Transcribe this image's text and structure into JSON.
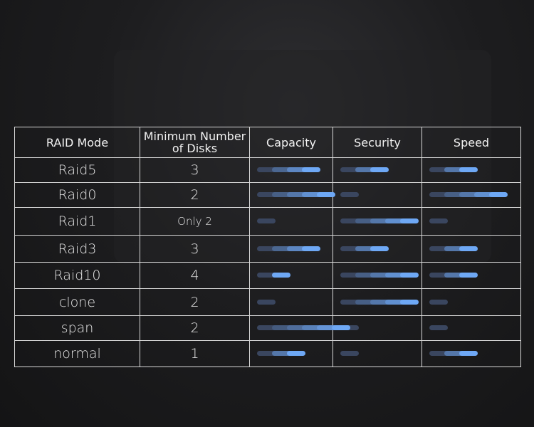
{
  "table": {
    "header": [
      "RAID Mode",
      "Minimum Number of Disks",
      "Capacity",
      "Security",
      "Speed"
    ],
    "rows": [
      {
        "mode": "Raid5",
        "disks": 3,
        "capacity": 4,
        "security": 3,
        "speed": 3
      },
      {
        "mode": "Raid0",
        "disks": 2,
        "capacity": 5,
        "security": 1,
        "speed": 5
      },
      {
        "mode": "Raid1",
        "disks": "Only 2",
        "capacity": 1,
        "security": 5,
        "speed": 1
      },
      {
        "mode": "Raid3",
        "disks": 3,
        "capacity": 4,
        "security": 3,
        "speed": 3
      },
      {
        "mode": "Raid10",
        "disks": 4,
        "capacity": 2,
        "security": 5,
        "speed": 3
      },
      {
        "mode": "clone",
        "disks": 2,
        "capacity": 1,
        "security": 5,
        "speed": 1
      },
      {
        "mode": "span",
        "disks": 2,
        "capacity": 6,
        "security": 1,
        "speed": 1
      },
      {
        "mode": "normal",
        "disks": 1,
        "capacity": 3,
        "security": 1,
        "speed": 3
      }
    ]
  }
}
